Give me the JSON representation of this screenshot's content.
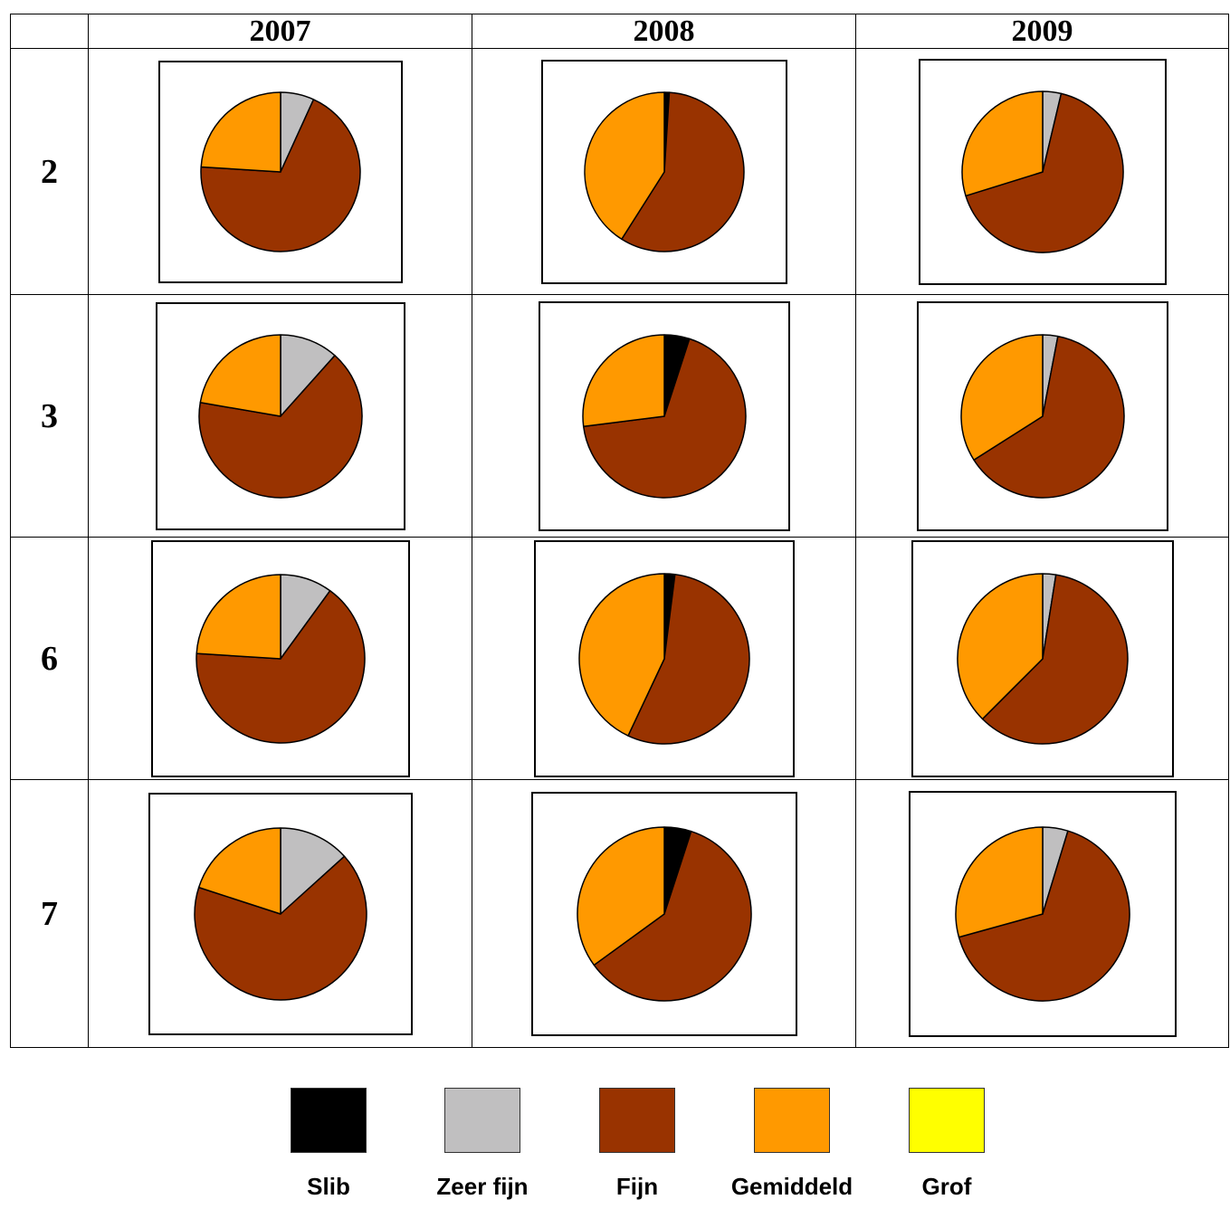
{
  "header": {
    "corner": "",
    "years": [
      "2007",
      "2008",
      "2009"
    ]
  },
  "rows": [
    {
      "label": "2"
    },
    {
      "label": "3"
    },
    {
      "label": "6"
    },
    {
      "label": "7"
    }
  ],
  "chart_data": [
    {
      "type": "pie",
      "station": "2",
      "year": "2007",
      "slices": [
        {
          "category": "Slib",
          "value": 0
        },
        {
          "category": "Zeer fijn",
          "value": 6.8
        },
        {
          "category": "Fijn",
          "value": 69.2
        },
        {
          "category": "Gemiddeld",
          "value": 24
        },
        {
          "category": "Grof",
          "value": 0
        }
      ]
    },
    {
      "type": "pie",
      "station": "2",
      "year": "2008",
      "slices": [
        {
          "category": "Slib",
          "value": 1
        },
        {
          "category": "Zeer fijn",
          "value": 0
        },
        {
          "category": "Fijn",
          "value": 58
        },
        {
          "category": "Gemiddeld",
          "value": 41
        },
        {
          "category": "Grof",
          "value": 0
        }
      ]
    },
    {
      "type": "pie",
      "station": "2",
      "year": "2009",
      "slices": [
        {
          "category": "Slib",
          "value": 0
        },
        {
          "category": "Zeer fijn",
          "value": 3.7
        },
        {
          "category": "Fijn",
          "value": 66.5
        },
        {
          "category": "Gemiddeld",
          "value": 29.8
        },
        {
          "category": "Grof",
          "value": 0
        }
      ]
    },
    {
      "type": "pie",
      "station": "3",
      "year": "2007",
      "slices": [
        {
          "category": "Slib",
          "value": 0
        },
        {
          "category": "Zeer fijn",
          "value": 11.6
        },
        {
          "category": "Fijn",
          "value": 66.1
        },
        {
          "category": "Gemiddeld",
          "value": 22.3
        },
        {
          "category": "Grof",
          "value": 0
        }
      ]
    },
    {
      "type": "pie",
      "station": "3",
      "year": "2008",
      "slices": [
        {
          "category": "Slib",
          "value": 5
        },
        {
          "category": "Zeer fijn",
          "value": 0
        },
        {
          "category": "Fijn",
          "value": 68
        },
        {
          "category": "Gemiddeld",
          "value": 27
        },
        {
          "category": "Grof",
          "value": 0
        }
      ]
    },
    {
      "type": "pie",
      "station": "3",
      "year": "2009",
      "slices": [
        {
          "category": "Slib",
          "value": 0
        },
        {
          "category": "Zeer fijn",
          "value": 3
        },
        {
          "category": "Fijn",
          "value": 63
        },
        {
          "category": "Gemiddeld",
          "value": 34
        },
        {
          "category": "Grof",
          "value": 0
        }
      ]
    },
    {
      "type": "pie",
      "station": "6",
      "year": "2007",
      "slices": [
        {
          "category": "Slib",
          "value": 0
        },
        {
          "category": "Zeer fijn",
          "value": 10
        },
        {
          "category": "Fijn",
          "value": 66
        },
        {
          "category": "Gemiddeld",
          "value": 24
        },
        {
          "category": "Grof",
          "value": 0
        }
      ]
    },
    {
      "type": "pie",
      "station": "6",
      "year": "2008",
      "slices": [
        {
          "category": "Slib",
          "value": 2
        },
        {
          "category": "Zeer fijn",
          "value": 0
        },
        {
          "category": "Fijn",
          "value": 55
        },
        {
          "category": "Gemiddeld",
          "value": 43
        },
        {
          "category": "Grof",
          "value": 0
        }
      ]
    },
    {
      "type": "pie",
      "station": "6",
      "year": "2009",
      "slices": [
        {
          "category": "Slib",
          "value": 0
        },
        {
          "category": "Zeer fijn",
          "value": 2.5
        },
        {
          "category": "Fijn",
          "value": 60
        },
        {
          "category": "Gemiddeld",
          "value": 37.5
        },
        {
          "category": "Grof",
          "value": 0
        }
      ]
    },
    {
      "type": "pie",
      "station": "7",
      "year": "2007",
      "slices": [
        {
          "category": "Slib",
          "value": 0
        },
        {
          "category": "Zeer fijn",
          "value": 13.3
        },
        {
          "category": "Fijn",
          "value": 66.7
        },
        {
          "category": "Gemiddeld",
          "value": 20
        },
        {
          "category": "Grof",
          "value": 0
        }
      ]
    },
    {
      "type": "pie",
      "station": "7",
      "year": "2008",
      "slices": [
        {
          "category": "Slib",
          "value": 5
        },
        {
          "category": "Zeer fijn",
          "value": 0
        },
        {
          "category": "Fijn",
          "value": 60
        },
        {
          "category": "Gemiddeld",
          "value": 35
        },
        {
          "category": "Grof",
          "value": 0
        }
      ]
    },
    {
      "type": "pie",
      "station": "7",
      "year": "2009",
      "slices": [
        {
          "category": "Slib",
          "value": 0
        },
        {
          "category": "Zeer fijn",
          "value": 4.7
        },
        {
          "category": "Fijn",
          "value": 66
        },
        {
          "category": "Gemiddeld",
          "value": 29.3
        },
        {
          "category": "Grof",
          "value": 0
        }
      ]
    }
  ],
  "legend": [
    {
      "label": "Slib",
      "color": "#000000"
    },
    {
      "label": "Zeer fijn",
      "color": "#C0BFC0"
    },
    {
      "label": "Fijn",
      "color": "#993300"
    },
    {
      "label": "Gemiddeld",
      "color": "#FF9900"
    },
    {
      "label": "Grof",
      "color": "#FFFF00"
    }
  ]
}
